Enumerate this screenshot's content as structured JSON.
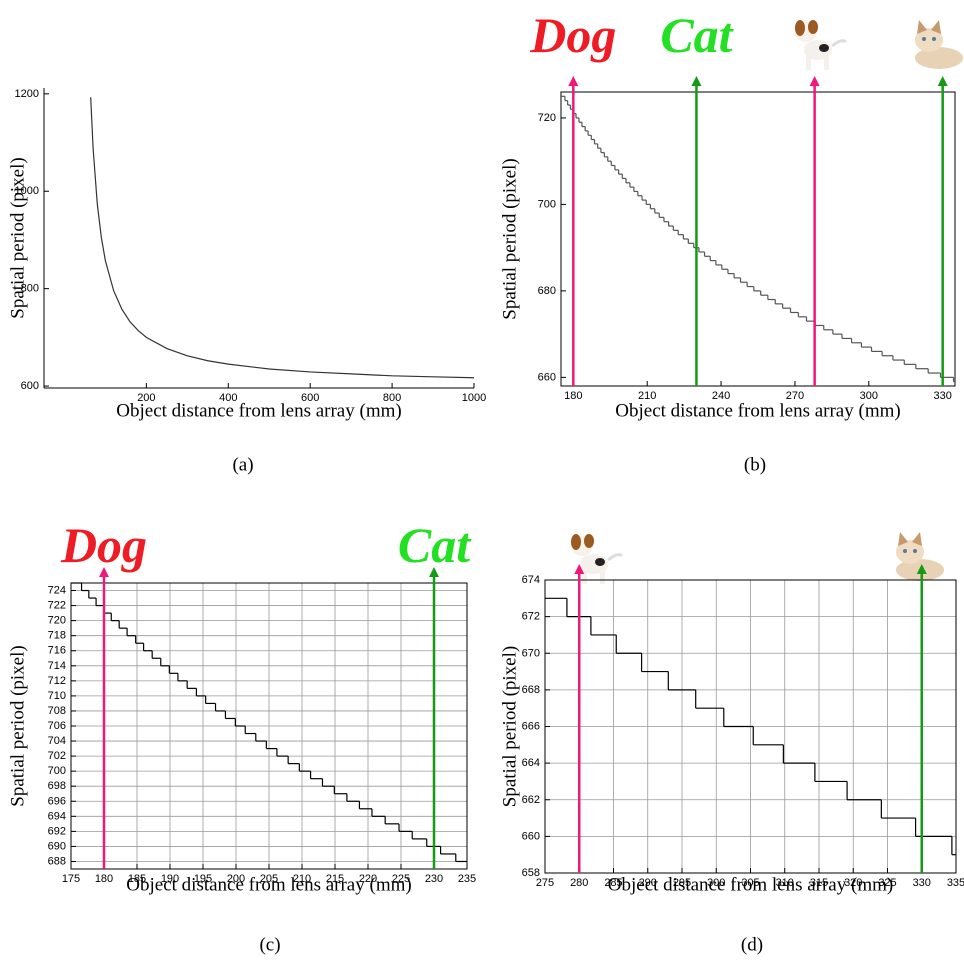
{
  "chart_data": [
    {
      "type": "line",
      "caption": "(a)",
      "x_label": "Object distance from lens array (mm)",
      "y_label": "Spatial period (pixel)",
      "x": [
        64,
        70,
        80,
        90,
        100,
        120,
        140,
        160,
        180,
        200,
        250,
        300,
        350,
        400,
        500,
        600,
        700,
        800,
        900,
        1000
      ],
      "values": [
        1193,
        1087,
        975,
        905,
        857,
        796,
        758,
        732,
        714,
        700,
        677,
        662,
        652,
        645,
        635,
        629,
        625,
        621,
        619,
        617
      ],
      "color": "#333333",
      "xlim": [
        -50,
        1000
      ],
      "ylim": [
        596,
        1212
      ],
      "xticks": [
        200,
        400,
        600,
        800,
        1000
      ],
      "yticks": [
        600,
        800,
        1000,
        1200
      ],
      "grid": false,
      "box": false
    },
    {
      "type": "step",
      "caption": "(b)",
      "x_label": "Object distance from lens array (mm)",
      "y_label": "Spatial period (pixel)",
      "x": [
        175,
        176.6,
        177.7,
        178.8,
        180,
        181.1,
        182.3,
        183.5,
        184.8,
        186,
        187.3,
        188.6,
        189.9,
        191.2,
        192.6,
        194,
        195.4,
        196.9,
        198.4,
        199.9,
        201.4,
        203,
        204.6,
        206.2,
        207.9,
        209.6,
        211.3,
        213.1,
        214.9,
        216.8,
        218.7,
        220.6,
        222.6,
        224.7,
        226.7,
        228.9,
        231,
        233.3,
        235.6,
        237.9,
        240.3,
        242.8,
        245.3,
        247.9,
        250.6,
        253.3,
        256.1,
        259,
        262,
        265,
        268.2,
        271.4,
        274.7,
        278.2,
        281.7,
        285.4,
        289.1,
        293,
        297,
        301.1,
        305.4,
        309.8,
        314.4,
        319.1,
        324.1,
        329.1,
        334.4
      ],
      "values": [
        725,
        724,
        723,
        722,
        721,
        720,
        719,
        718,
        717,
        716,
        715,
        714,
        713,
        712,
        711,
        710,
        709,
        708,
        707,
        706,
        705,
        704,
        703,
        702,
        701,
        700,
        699,
        698,
        697,
        696,
        695,
        694,
        693,
        692,
        691,
        690,
        689,
        688,
        687,
        686,
        685,
        684,
        683,
        682,
        681,
        680,
        679,
        678,
        677,
        676,
        675,
        674,
        673,
        672,
        671,
        670,
        669,
        668,
        667,
        666,
        665,
        664,
        663,
        662,
        661,
        660,
        659
      ],
      "color": "#555555",
      "xlim": [
        175,
        335
      ],
      "ylim": [
        658,
        726
      ],
      "xticks": [
        180,
        210,
        240,
        270,
        300,
        330
      ],
      "yticks": [
        660,
        680,
        700,
        720
      ],
      "grid": false,
      "box": true,
      "markers": [
        {
          "x": 180,
          "color": "#f0187a",
          "label": "Dog",
          "label_color": "#ee1c24"
        },
        {
          "x": 230,
          "color": "#159a15",
          "label": "Cat",
          "label_color": "#22e022"
        },
        {
          "x": 278,
          "color": "#f0187a"
        },
        {
          "x": 330,
          "color": "#159a15"
        }
      ]
    },
    {
      "type": "step",
      "caption": "(c)",
      "x_label": "Object distance from lens array (mm)",
      "y_label": "Spatial period (pixel)",
      "x": [
        175,
        176.6,
        177.7,
        178.8,
        180,
        181.1,
        182.3,
        183.5,
        184.8,
        186,
        187.3,
        188.6,
        189.9,
        191.2,
        192.6,
        194,
        195.4,
        196.9,
        198.4,
        199.9,
        201.4,
        203,
        204.6,
        206.2,
        207.9,
        209.6,
        211.3,
        213.1,
        214.9,
        216.8,
        218.7,
        220.6,
        222.6,
        224.7,
        226.7,
        228.9,
        231,
        233.3
      ],
      "values": [
        725,
        724,
        723,
        722,
        721,
        720,
        719,
        718,
        717,
        716,
        715,
        714,
        713,
        712,
        711,
        710,
        709,
        708,
        707,
        706,
        705,
        704,
        703,
        702,
        701,
        700,
        699,
        698,
        697,
        696,
        695,
        694,
        693,
        692,
        691,
        690,
        689,
        688
      ],
      "color": "#000000",
      "xlim": [
        175,
        235
      ],
      "ylim": [
        687,
        725
      ],
      "xticks": [
        175,
        180,
        185,
        190,
        195,
        200,
        205,
        210,
        215,
        220,
        225,
        230,
        235
      ],
      "yticks": [
        688,
        690,
        692,
        694,
        696,
        698,
        700,
        702,
        704,
        706,
        708,
        710,
        712,
        714,
        716,
        718,
        720,
        722,
        724
      ],
      "grid": true,
      "box": true,
      "markers": [
        {
          "x": 180,
          "color": "#f0187a",
          "label": "Dog",
          "label_color": "#ee1c24"
        },
        {
          "x": 230,
          "color": "#159a15",
          "label": "Cat",
          "label_color": "#22e022"
        }
      ]
    },
    {
      "type": "step",
      "caption": "(d)",
      "x_label": "Object distance from lens array (mm)",
      "y_label": "Spatial period (pixel)",
      "x": [
        275,
        278.2,
        281.7,
        285.4,
        289.1,
        293,
        297,
        301.1,
        305.4,
        309.8,
        314.4,
        319.1,
        324.1,
        329.1,
        334.4
      ],
      "values": [
        673,
        672,
        671,
        670,
        669,
        668,
        667,
        666,
        665,
        664,
        663,
        662,
        661,
        660,
        659
      ],
      "color": "#000000",
      "xlim": [
        275,
        335
      ],
      "ylim": [
        658,
        674
      ],
      "xticks": [
        275,
        280,
        285,
        290,
        295,
        300,
        305,
        310,
        315,
        320,
        325,
        330,
        335
      ],
      "yticks": [
        658,
        660,
        662,
        664,
        666,
        668,
        670,
        672,
        674
      ],
      "grid": true,
      "box": true,
      "markers": [
        {
          "x": 280,
          "color": "#f0187a"
        },
        {
          "x": 330,
          "color": "#159a15"
        }
      ]
    }
  ]
}
